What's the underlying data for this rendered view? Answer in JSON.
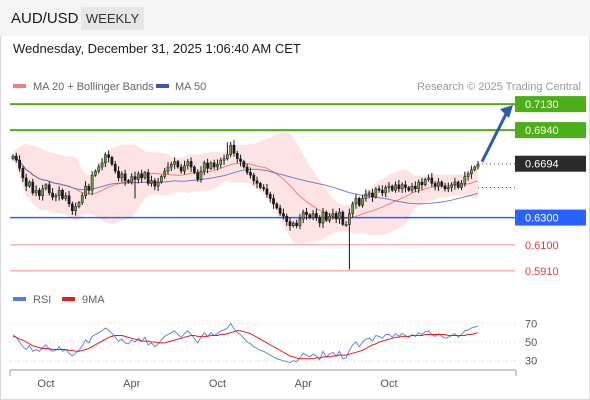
{
  "header": {
    "symbol": "AUD/USD",
    "timeframe": "WEEKLY"
  },
  "datetime": "Wednesday, December 31, 2025 1:06:40 AM CET",
  "legend": {
    "ma20_label": "MA 20 + Bollinger Bands",
    "ma50_label": "MA 50",
    "attribution": "Research © 2025 Trading Central"
  },
  "colors": {
    "ma20": "#f08080",
    "band_fill": "#fde0e0",
    "ma50": "#3f51b5",
    "candle": "#1a1a1a",
    "green_level": "#4caf1a",
    "blue_level": "#2962ff",
    "red_level": "#f28b8b",
    "arrow": "#2c5da8",
    "rsi": "#4f7fe0",
    "rsi_ma": "#e02020"
  },
  "chart_data": [
    {
      "type": "candlestick",
      "name": "price",
      "ylim": [
        0.588,
        0.716
      ],
      "x_ticks": [
        "Oct",
        "Apr",
        "Oct",
        "Apr",
        "Oct"
      ],
      "current_price": 0.6694,
      "levels": [
        {
          "value": 0.713,
          "label": "0.7130",
          "kind": "resistance"
        },
        {
          "value": 0.694,
          "label": "0.6940",
          "kind": "resistance"
        },
        {
          "value": 0.6694,
          "label": "0.6694",
          "kind": "current"
        },
        {
          "value": 0.63,
          "label": "0.6300",
          "kind": "pivot"
        },
        {
          "value": 0.61,
          "label": "0.6100",
          "kind": "support"
        },
        {
          "value": 0.591,
          "label": "0.5910",
          "kind": "support"
        }
      ],
      "arrow": {
        "from": 0.6694,
        "to": 0.713
      },
      "closes": [
        0.675,
        0.672,
        0.666,
        0.659,
        0.653,
        0.656,
        0.648,
        0.65,
        0.646,
        0.651,
        0.654,
        0.648,
        0.645,
        0.646,
        0.65,
        0.644,
        0.646,
        0.64,
        0.635,
        0.638,
        0.641,
        0.646,
        0.653,
        0.65,
        0.661,
        0.664,
        0.667,
        0.67,
        0.676,
        0.674,
        0.669,
        0.664,
        0.659,
        0.662,
        0.657,
        0.656,
        0.66,
        0.658,
        0.662,
        0.659,
        0.663,
        0.655,
        0.657,
        0.653,
        0.656,
        0.66,
        0.664,
        0.667,
        0.669,
        0.671,
        0.667,
        0.664,
        0.668,
        0.671,
        0.667,
        0.663,
        0.658,
        0.664,
        0.67,
        0.666,
        0.67,
        0.667,
        0.669,
        0.672,
        0.673,
        0.676,
        0.683,
        0.677,
        0.673,
        0.671,
        0.667,
        0.663,
        0.661,
        0.657,
        0.655,
        0.652,
        0.651,
        0.647,
        0.644,
        0.64,
        0.637,
        0.633,
        0.631,
        0.627,
        0.624,
        0.626,
        0.624,
        0.629,
        0.634,
        0.632,
        0.63,
        0.633,
        0.63,
        0.626,
        0.634,
        0.628,
        0.631,
        0.633,
        0.629,
        0.634,
        0.625,
        0.625,
        0.633,
        0.64,
        0.644,
        0.639,
        0.644,
        0.647,
        0.648,
        0.645,
        0.651,
        0.65,
        0.648,
        0.652,
        0.653,
        0.65,
        0.654,
        0.651,
        0.654,
        0.652,
        0.65,
        0.653,
        0.651,
        0.656,
        0.654,
        0.658,
        0.659,
        0.655,
        0.653,
        0.656,
        0.653,
        0.651,
        0.652,
        0.654,
        0.656,
        0.652,
        0.655,
        0.66,
        0.662,
        0.665,
        0.667,
        0.669
      ]
    },
    {
      "type": "line",
      "name": "indicator",
      "legend": [
        "RSI",
        "9MA"
      ],
      "ylim": [
        20,
        80
      ],
      "y_ticks": [
        70,
        50,
        30
      ],
      "series": [
        {
          "name": "RSI",
          "values": [
            58,
            55,
            50,
            45,
            42,
            46,
            40,
            42,
            40,
            44,
            47,
            42,
            40,
            41,
            45,
            40,
            42,
            38,
            35,
            38,
            41,
            46,
            52,
            49,
            56,
            58,
            60,
            62,
            65,
            63,
            59,
            55,
            51,
            53,
            49,
            48,
            52,
            50,
            54,
            51,
            55,
            47,
            49,
            45,
            48,
            52,
            56,
            58,
            60,
            62,
            58,
            55,
            59,
            62,
            58,
            54,
            49,
            55,
            60,
            56,
            60,
            57,
            59,
            62,
            63,
            65,
            70,
            64,
            60,
            58,
            54,
            50,
            48,
            45,
            43,
            41,
            40,
            38,
            36,
            34,
            32,
            31,
            30,
            29,
            28,
            30,
            29,
            33,
            38,
            36,
            34,
            37,
            35,
            31,
            40,
            34,
            37,
            39,
            35,
            40,
            32,
            33,
            41,
            47,
            50,
            45,
            50,
            53,
            54,
            51,
            57,
            56,
            54,
            58,
            58,
            55,
            59,
            56,
            59,
            57,
            55,
            58,
            56,
            60,
            58,
            61,
            62,
            58,
            56,
            59,
            56,
            54,
            55,
            57,
            59,
            55,
            58,
            62,
            63,
            65,
            66,
            67
          ]
        },
        {
          "name": "9MA",
          "values": [
            56,
            55,
            53,
            52,
            50,
            48,
            46,
            45,
            44,
            43,
            43,
            43,
            42,
            42,
            42,
            42,
            42,
            41,
            41,
            40,
            40,
            41,
            42,
            43,
            45,
            47,
            49,
            51,
            53,
            55,
            56,
            57,
            57,
            57,
            56,
            55,
            54,
            53,
            52,
            51,
            51,
            51,
            50,
            50,
            49,
            49,
            49,
            50,
            51,
            52,
            53,
            54,
            55,
            56,
            57,
            57,
            56,
            56,
            56,
            56,
            57,
            57,
            57,
            58,
            58,
            59,
            60,
            61,
            62,
            62,
            61,
            60,
            59,
            57,
            55,
            53,
            51,
            49,
            47,
            45,
            43,
            41,
            39,
            37,
            35,
            34,
            33,
            32,
            32,
            32,
            32,
            32,
            33,
            33,
            34,
            34,
            34,
            35,
            35,
            36,
            36,
            36,
            37,
            38,
            39,
            40,
            41,
            43,
            45,
            47,
            48,
            50,
            51,
            52,
            53,
            54,
            55,
            55,
            56,
            56,
            56,
            57,
            57,
            57,
            57,
            58,
            58,
            58,
            58,
            58,
            58,
            58,
            57,
            57,
            57,
            57,
            57,
            57,
            58,
            58,
            59,
            60
          ]
        }
      ]
    }
  ]
}
